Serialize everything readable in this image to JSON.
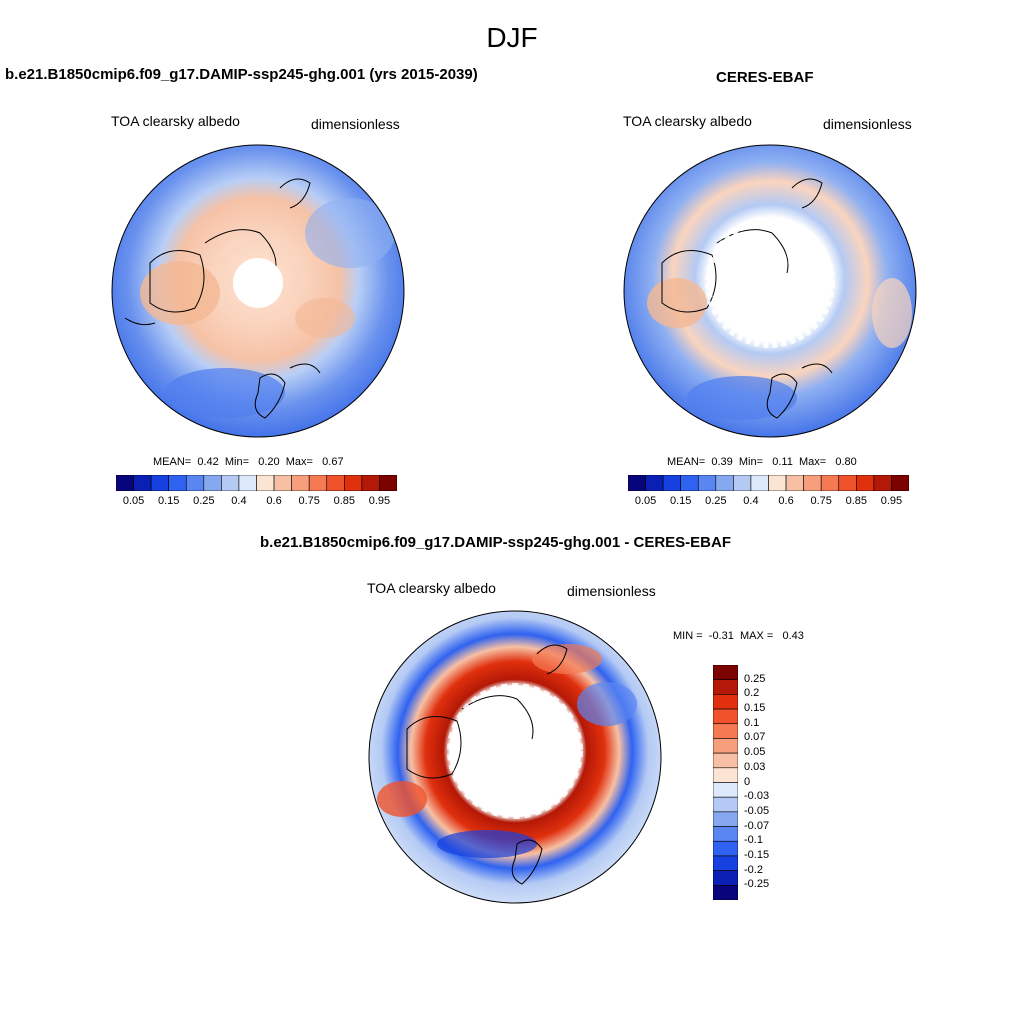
{
  "season": "DJF",
  "panels": [
    {
      "id": "model",
      "title": "b.e21.B1850cmip6.f09_g17.DAMIP-ssp245-ghg.001 (yrs 2015-2039)",
      "variable": "TOA clearsky albedo",
      "units": "dimensionless",
      "stats": {
        "mean_label": "MEAN=",
        "mean": "0.42",
        "min_label": "Min=",
        "min": "0.20",
        "max_label": "Max=",
        "max": "0.67"
      }
    },
    {
      "id": "obs",
      "title": "CERES-EBAF",
      "variable": "TOA clearsky albedo",
      "units": "dimensionless",
      "stats": {
        "mean_label": "MEAN=",
        "mean": "0.39",
        "min_label": "Min=",
        "min": "0.11",
        "max_label": "Max=",
        "max": "0.80"
      }
    }
  ],
  "difference": {
    "title": "b.e21.B1850cmip6.f09_g17.DAMIP-ssp245-ghg.001 - CERES-EBAF",
    "variable": "TOA clearsky albedo",
    "units": "dimensionless",
    "stats": {
      "min_label": "MIN =",
      "min": "-0.31",
      "max_label": "MAX =",
      "max": "0.43"
    }
  },
  "colorbar_abs": {
    "colors": [
      "#08047c",
      "#0a1fb4",
      "#1640e0",
      "#2f62f0",
      "#5a86f2",
      "#86a8f0",
      "#b4caf4",
      "#dde8fa",
      "#fce4d4",
      "#f7c0a4",
      "#f79e7c",
      "#f57a52",
      "#f0522c",
      "#e0300e",
      "#b41806",
      "#7c0200"
    ],
    "tick_labels": [
      "0.05",
      "0.15",
      "0.25",
      "0.4",
      "0.6",
      "0.75",
      "0.85",
      "0.95"
    ]
  },
  "colorbar_diff": {
    "colors": [
      "#7c0200",
      "#b41806",
      "#e0300e",
      "#f0522c",
      "#f57a52",
      "#f79e7c",
      "#f7c0a4",
      "#fce4d4",
      "#dde8fa",
      "#b4caf4",
      "#86a8f0",
      "#5a86f2",
      "#2f62f0",
      "#1640e0",
      "#0a1fb4",
      "#08047c"
    ],
    "tick_labels": [
      "0.25",
      "0.2",
      "0.15",
      "0.1",
      "0.07",
      "0.05",
      "0.03",
      "0",
      "-0.03",
      "-0.05",
      "-0.07",
      "-0.1",
      "-0.15",
      "-0.2",
      "-0.25"
    ]
  }
}
